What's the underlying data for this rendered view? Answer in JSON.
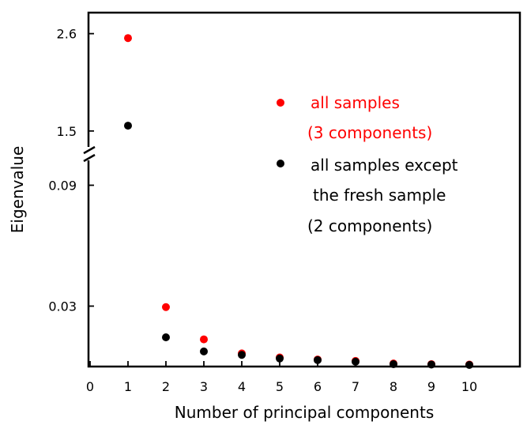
{
  "chart_data": {
    "type": "scatter",
    "xlabel": "Number of  principal components",
    "ylabel": "Eigenvalue",
    "x": [
      1,
      2,
      3,
      4,
      5,
      6,
      7,
      8,
      9,
      10
    ],
    "xlim": [
      0,
      10.5
    ],
    "x_ticks": [
      "0",
      "1",
      "2",
      "3",
      "4",
      "5",
      "6",
      "7",
      "8",
      "9",
      "10"
    ],
    "y_ticks": [
      "2.6",
      "1.5",
      "0.09",
      "0.03"
    ],
    "y_axis_break": {
      "lower_range": [
        0,
        0.1
      ],
      "upper_range": [
        1.4,
        2.65
      ]
    },
    "grid": false,
    "legend_position": "center-right",
    "series": [
      {
        "name": "all samples",
        "note": "(3 components)",
        "color": "#ff0000",
        "values": [
          2.55,
          0.0295,
          0.0135,
          0.0065,
          0.0045,
          0.0035,
          0.0028,
          0.0015,
          0.0012,
          0.001
        ]
      },
      {
        "name": "all samples except",
        "note_lines": [
          "the fresh sample",
          "(2 components)"
        ],
        "color": "#000000",
        "values": [
          1.56,
          0.0145,
          0.0075,
          0.0058,
          0.004,
          0.0032,
          0.0024,
          0.0012,
          0.001,
          0.0008
        ]
      }
    ]
  }
}
